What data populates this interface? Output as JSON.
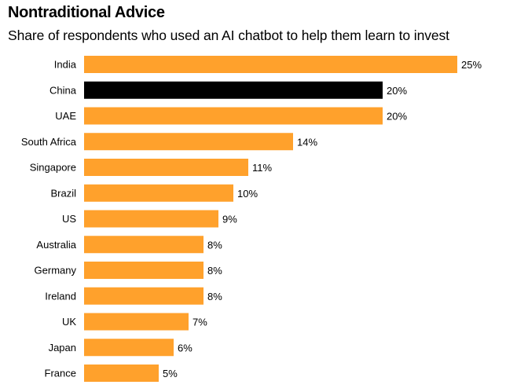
{
  "chart_data": {
    "type": "bar",
    "orientation": "horizontal",
    "title": "Nontraditional Advice",
    "subtitle": "Share of respondents who used an AI chatbot to help them learn to invest",
    "categories": [
      "India",
      "China",
      "UAE",
      "South Africa",
      "Singapore",
      "Brazil",
      "US",
      "Australia",
      "Germany",
      "Ireland",
      "UK",
      "Japan",
      "France"
    ],
    "values": [
      25,
      20,
      20,
      14,
      11,
      10,
      9,
      8,
      8,
      8,
      7,
      6,
      5
    ],
    "value_labels": [
      "25%",
      "20%",
      "20%",
      "14%",
      "11%",
      "10%",
      "9%",
      "8%",
      "8%",
      "8%",
      "7%",
      "6%",
      "5%"
    ],
    "highlight_category": "China",
    "xlim": [
      0,
      25
    ],
    "xlabel": "",
    "ylabel": "",
    "grid": false,
    "legend": "none",
    "colors": {
      "bar": "#ffa12c",
      "highlight": "#000000"
    }
  }
}
